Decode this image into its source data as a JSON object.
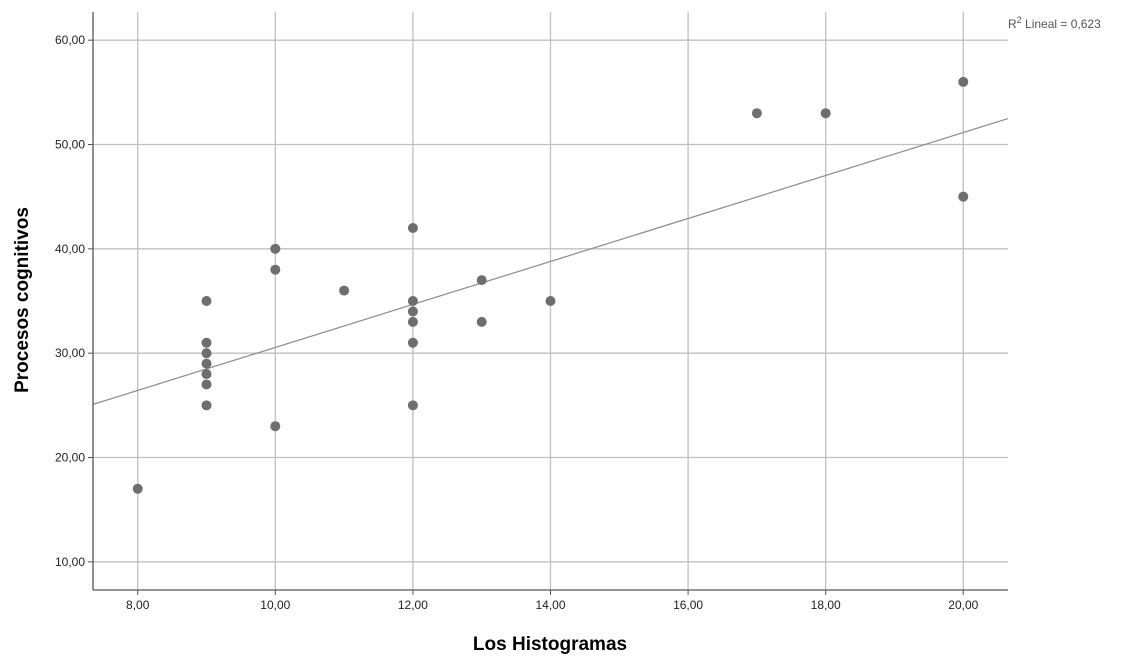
{
  "chart_data": {
    "type": "scatter",
    "xlabel": "Los Histogramas",
    "ylabel": "Procesos cognitivos",
    "xlim": [
      7.35,
      20.65
    ],
    "ylim": [
      7.3,
      62.7
    ],
    "x_ticks": [
      8,
      10,
      12,
      14,
      16,
      18,
      20
    ],
    "x_tick_labels": [
      "8,00",
      "10,00",
      "12,00",
      "14,00",
      "16,00",
      "18,00",
      "20,00"
    ],
    "y_ticks": [
      10,
      20,
      30,
      40,
      50,
      60
    ],
    "y_tick_labels": [
      "10,00",
      "20,00",
      "30,00",
      "40,00",
      "50,00",
      "60,00"
    ],
    "grid": true,
    "points": [
      {
        "x": 8,
        "y": 17
      },
      {
        "x": 9,
        "y": 35
      },
      {
        "x": 9,
        "y": 31
      },
      {
        "x": 9,
        "y": 30
      },
      {
        "x": 9,
        "y": 29
      },
      {
        "x": 9,
        "y": 28
      },
      {
        "x": 9,
        "y": 27
      },
      {
        "x": 9,
        "y": 25
      },
      {
        "x": 10,
        "y": 40
      },
      {
        "x": 10,
        "y": 38
      },
      {
        "x": 10,
        "y": 23
      },
      {
        "x": 11,
        "y": 36
      },
      {
        "x": 12,
        "y": 42
      },
      {
        "x": 12,
        "y": 35
      },
      {
        "x": 12,
        "y": 34
      },
      {
        "x": 12,
        "y": 33
      },
      {
        "x": 12,
        "y": 31
      },
      {
        "x": 12,
        "y": 25
      },
      {
        "x": 13,
        "y": 37
      },
      {
        "x": 13,
        "y": 33
      },
      {
        "x": 14,
        "y": 35
      },
      {
        "x": 17,
        "y": 53
      },
      {
        "x": 18,
        "y": 53
      },
      {
        "x": 20,
        "y": 56
      },
      {
        "x": 20,
        "y": 45
      }
    ],
    "fit_line": {
      "slope": 2.06,
      "intercept": 9.95
    },
    "r2_label_prefix": "R",
    "r2_label_sup": "2",
    "r2_label_rest": " Lineal = 0,623",
    "point_color": "#6e6e6e",
    "grid_color": "#c0c0c0",
    "fit_color": "#8c8c8c"
  }
}
